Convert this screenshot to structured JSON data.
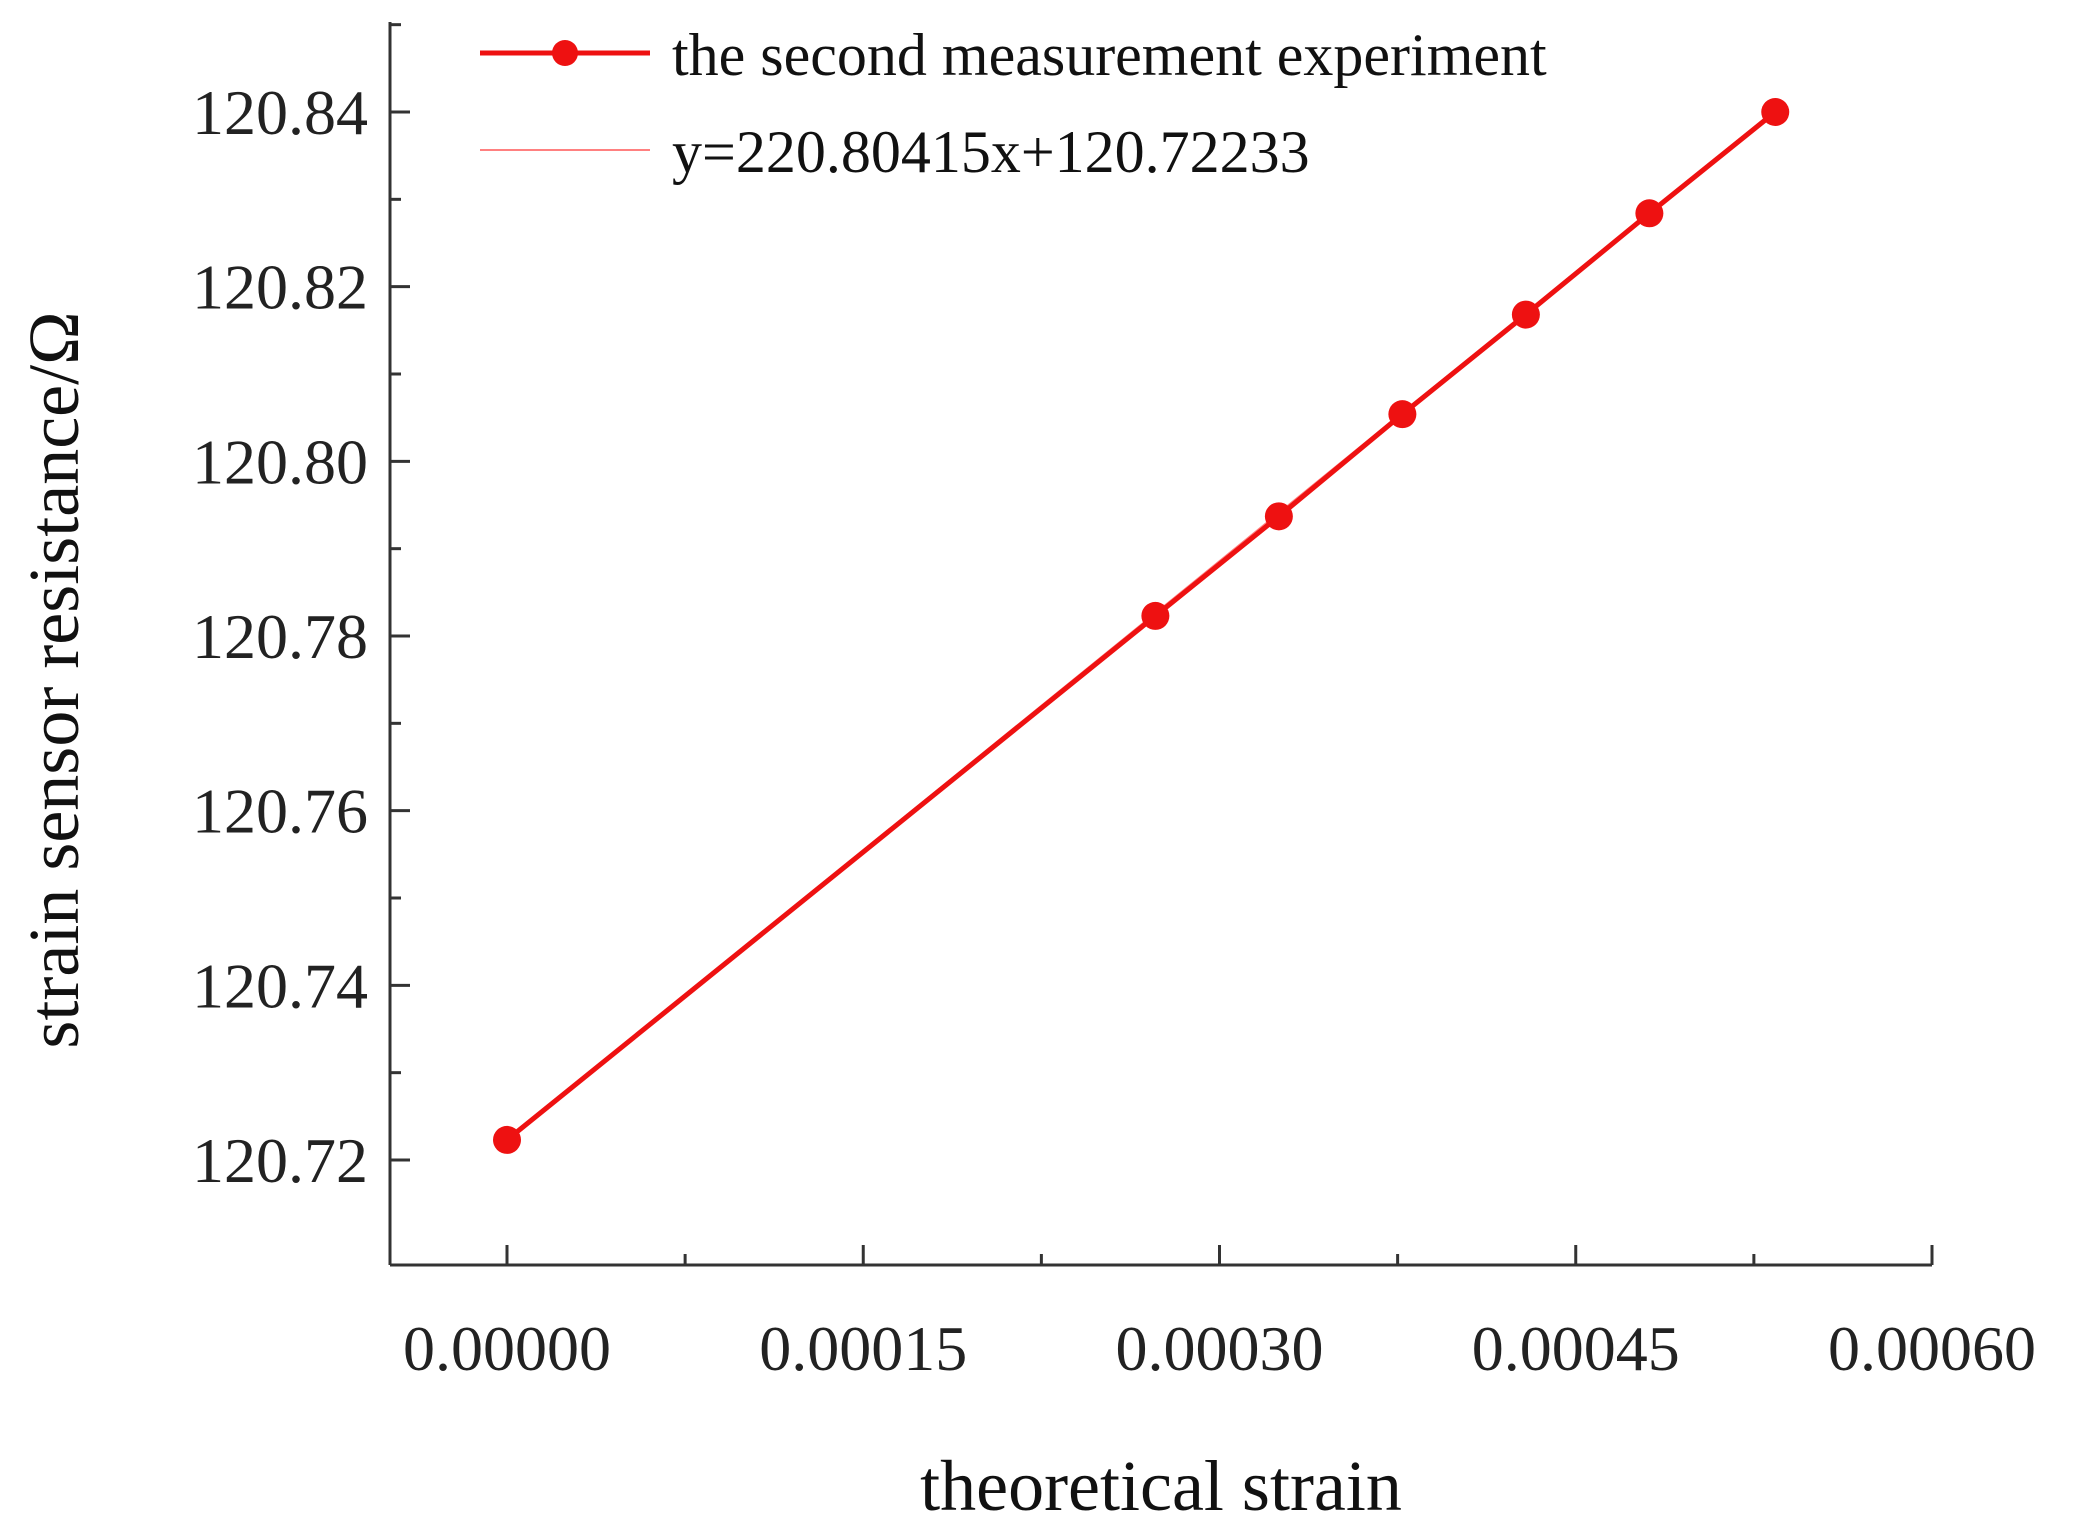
{
  "chart_data": {
    "type": "line",
    "title": "",
    "xlabel": "theoretical strain",
    "ylabel": "strain sensor resistance/Ω",
    "xlim": [
      -5e-05,
      0.0006
    ],
    "ylim": [
      120.71,
      120.85
    ],
    "x_ticks": [
      0.0,
      0.00015,
      0.0003,
      0.00045,
      0.0006
    ],
    "x_tick_labels": [
      "0.00000",
      "0.00015",
      "0.00030",
      "0.00045",
      "0.00060"
    ],
    "y_ticks": [
      120.72,
      120.74,
      120.76,
      120.78,
      120.8,
      120.82,
      120.84
    ],
    "y_tick_labels": [
      "120.72",
      "120.74",
      "120.76",
      "120.78",
      "120.80",
      "120.82",
      "120.84"
    ],
    "legend_position": "top",
    "series": [
      {
        "name": "the second measurement experiment",
        "color": "#ee1111",
        "style": "line-with-markers",
        "x": [
          0.0,
          0.000273,
          0.000325,
          0.000377,
          0.000429,
          0.000481,
          0.000534
        ],
        "y": [
          120.7223,
          120.7823,
          120.7937,
          120.8054,
          120.8168,
          120.8284,
          120.84
        ]
      },
      {
        "name": "y=220.80415x+120.72233",
        "color": "#ff8080",
        "style": "line",
        "slope": 220.80415,
        "intercept": 120.72233,
        "x_range": [
          0.0,
          0.000534
        ]
      }
    ]
  }
}
